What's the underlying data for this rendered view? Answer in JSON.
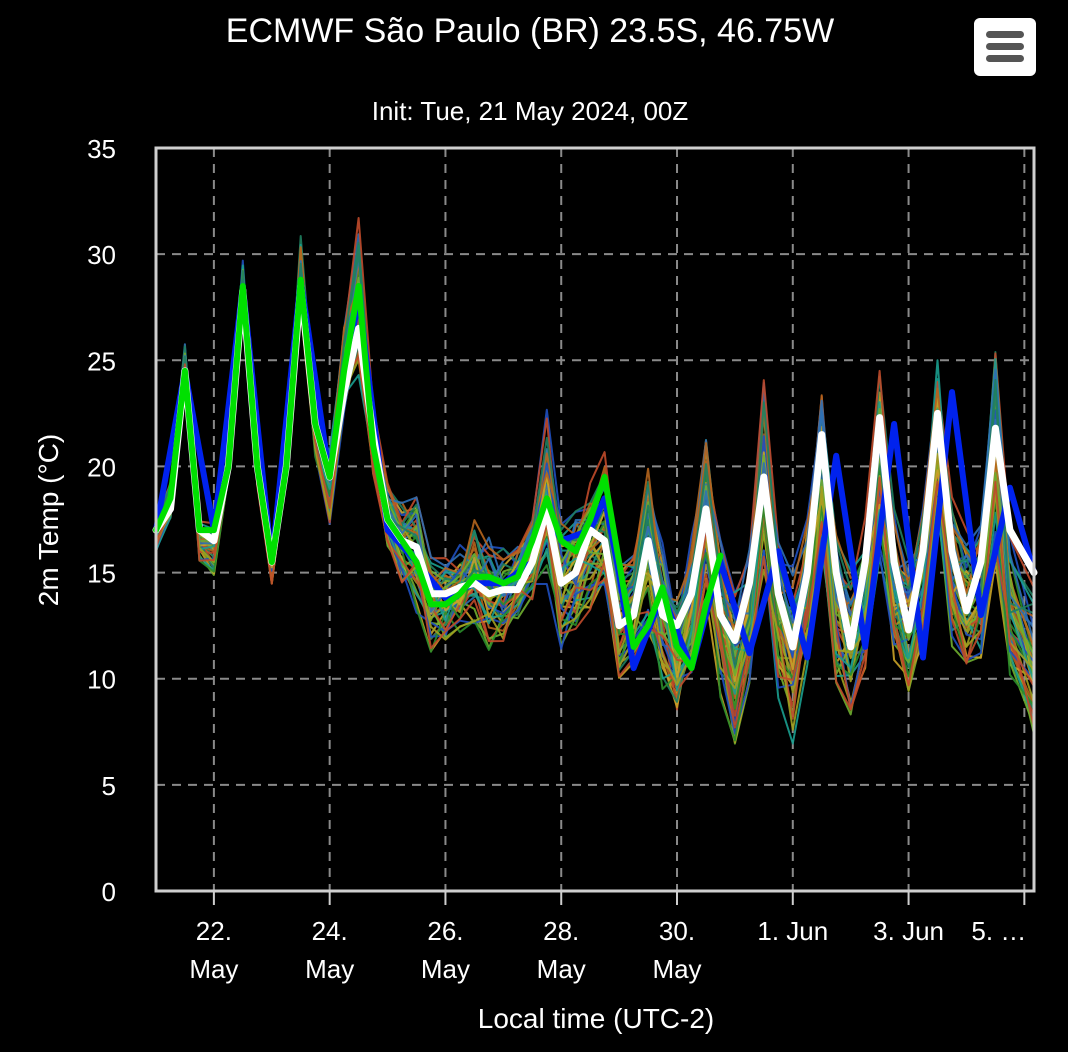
{
  "chart_data": {
    "type": "line",
    "title": "ECMWF São Paulo (BR) 23.5S, 46.75W",
    "subtitle": "Init: Tue, 21 May 2024, 00Z",
    "xlabel": "Local time (UTC-2)",
    "ylabel": "2m Temp (°C)",
    "ylim": [
      0,
      35
    ],
    "yticks": [
      0,
      5,
      10,
      15,
      20,
      25,
      30,
      35
    ],
    "xlim": [
      "2024-05-21T00:00",
      "2024-06-05T04:00"
    ],
    "xticks": [
      {
        "at": "2024-05-22",
        "line1": "22.",
        "line2": "May"
      },
      {
        "at": "2024-05-24",
        "line1": "24.",
        "line2": "May"
      },
      {
        "at": "2024-05-26",
        "line1": "26.",
        "line2": "May"
      },
      {
        "at": "2024-05-28",
        "line1": "28.",
        "line2": "May"
      },
      {
        "at": "2024-05-30",
        "line1": "30.",
        "line2": "May"
      },
      {
        "at": "2024-06-01",
        "line1": "1. Jun",
        "line2": ""
      },
      {
        "at": "2024-06-03",
        "line1": "3. Jun",
        "line2": ""
      },
      {
        "at": "2024-06-05",
        "line1": "5. …",
        "line2": ""
      }
    ],
    "grid": true,
    "series": [
      {
        "role": "highres",
        "color": "#00e000",
        "width": 6,
        "points": [
          [
            "2024-05-21T00:00",
            17.0
          ],
          [
            "2024-05-21T06:00",
            18.5
          ],
          [
            "2024-05-21T12:00",
            24.5
          ],
          [
            "2024-05-21T18:00",
            17.0
          ],
          [
            "2024-05-22T00:00",
            17.0
          ],
          [
            "2024-05-22T06:00",
            20.0
          ],
          [
            "2024-05-22T12:00",
            28.5
          ],
          [
            "2024-05-22T18:00",
            20.0
          ],
          [
            "2024-05-23T00:00",
            15.5
          ],
          [
            "2024-05-23T06:00",
            20.0
          ],
          [
            "2024-05-23T12:00",
            28.8
          ],
          [
            "2024-05-23T18:00",
            22.0
          ],
          [
            "2024-05-24T00:00",
            19.5
          ],
          [
            "2024-05-24T06:00",
            24.5
          ],
          [
            "2024-05-24T12:00",
            28.5
          ],
          [
            "2024-05-24T18:00",
            21.0
          ],
          [
            "2024-05-25T00:00",
            17.5
          ],
          [
            "2024-05-25T06:00",
            16.5
          ],
          [
            "2024-05-25T12:00",
            15.5
          ],
          [
            "2024-05-25T18:00",
            13.5
          ],
          [
            "2024-05-26T00:00",
            13.5
          ],
          [
            "2024-05-26T06:00",
            14.0
          ],
          [
            "2024-05-26T12:00",
            14.8
          ],
          [
            "2024-05-26T18:00",
            14.8
          ],
          [
            "2024-05-27T00:00",
            14.5
          ],
          [
            "2024-05-27T06:00",
            14.8
          ],
          [
            "2024-05-27T12:00",
            16.5
          ],
          [
            "2024-05-27T18:00",
            18.5
          ],
          [
            "2024-05-28T00:00",
            16.5
          ],
          [
            "2024-05-28T06:00",
            16.0
          ],
          [
            "2024-05-28T12:00",
            17.5
          ],
          [
            "2024-05-28T18:00",
            19.5
          ],
          [
            "2024-05-29T00:00",
            15.5
          ],
          [
            "2024-05-29T06:00",
            11.5
          ],
          [
            "2024-05-29T12:00",
            12.5
          ],
          [
            "2024-05-29T18:00",
            14.3
          ],
          [
            "2024-05-30T00:00",
            11.5
          ],
          [
            "2024-05-30T06:00",
            10.5
          ],
          [
            "2024-05-30T12:00",
            13.5
          ],
          [
            "2024-05-30T18:00",
            15.8
          ]
        ]
      },
      {
        "role": "control",
        "color": "#0022ee",
        "width": 6,
        "points": [
          [
            "2024-05-21T00:00",
            17.0
          ],
          [
            "2024-05-21T12:00",
            24.5
          ],
          [
            "2024-05-22T00:00",
            17.0
          ],
          [
            "2024-05-22T12:00",
            28.5
          ],
          [
            "2024-05-23T00:00",
            15.5
          ],
          [
            "2024-05-23T12:00",
            28.8
          ],
          [
            "2024-05-24T00:00",
            19.5
          ],
          [
            "2024-05-24T12:00",
            28.0
          ],
          [
            "2024-05-25T00:00",
            17.0
          ],
          [
            "2024-05-25T12:00",
            15.5
          ],
          [
            "2024-05-26T00:00",
            13.8
          ],
          [
            "2024-05-26T12:00",
            14.5
          ],
          [
            "2024-05-27T00:00",
            14.5
          ],
          [
            "2024-05-27T12:00",
            15.5
          ],
          [
            "2024-05-27T18:00",
            18.0
          ],
          [
            "2024-05-28T00:00",
            16.5
          ],
          [
            "2024-05-28T12:00",
            17.0
          ],
          [
            "2024-05-28T18:00",
            18.5
          ],
          [
            "2024-05-29T00:00",
            15.0
          ],
          [
            "2024-05-29T06:00",
            10.5
          ],
          [
            "2024-05-29T18:00",
            14.0
          ],
          [
            "2024-05-30T06:00",
            10.5
          ],
          [
            "2024-05-30T18:00",
            15.5
          ],
          [
            "2024-05-31T06:00",
            11.2
          ],
          [
            "2024-05-31T18:00",
            16.0
          ],
          [
            "2024-06-01T06:00",
            11.0
          ],
          [
            "2024-06-01T18:00",
            20.5
          ],
          [
            "2024-06-02T06:00",
            11.5
          ],
          [
            "2024-06-02T18:00",
            22.0
          ],
          [
            "2024-06-03T06:00",
            11.0
          ],
          [
            "2024-06-03T18:00",
            23.5
          ],
          [
            "2024-06-04T06:00",
            13.0
          ],
          [
            "2024-06-04T18:00",
            19.0
          ],
          [
            "2024-06-05T04:00",
            15.0
          ]
        ]
      },
      {
        "role": "mean",
        "color": "#ffffff",
        "width": 7,
        "points": [
          [
            "2024-05-21T00:00",
            17.0
          ],
          [
            "2024-05-21T06:00",
            18.0
          ],
          [
            "2024-05-21T12:00",
            24.5
          ],
          [
            "2024-05-21T18:00",
            17.0
          ],
          [
            "2024-05-22T00:00",
            16.5
          ],
          [
            "2024-05-22T06:00",
            20.0
          ],
          [
            "2024-05-22T12:00",
            28.3
          ],
          [
            "2024-05-22T18:00",
            20.0
          ],
          [
            "2024-05-23T00:00",
            15.5
          ],
          [
            "2024-05-23T06:00",
            20.0
          ],
          [
            "2024-05-23T12:00",
            28.5
          ],
          [
            "2024-05-23T18:00",
            22.0
          ],
          [
            "2024-05-24T00:00",
            19.5
          ],
          [
            "2024-05-24T06:00",
            23.5
          ],
          [
            "2024-05-24T12:00",
            26.5
          ],
          [
            "2024-05-24T18:00",
            21.5
          ],
          [
            "2024-05-25T00:00",
            17.5
          ],
          [
            "2024-05-25T06:00",
            16.5
          ],
          [
            "2024-05-25T12:00",
            16.2
          ],
          [
            "2024-05-25T18:00",
            14.0
          ],
          [
            "2024-05-26T00:00",
            14.0
          ],
          [
            "2024-05-26T06:00",
            14.3
          ],
          [
            "2024-05-26T12:00",
            14.5
          ],
          [
            "2024-05-26T18:00",
            14.0
          ],
          [
            "2024-05-27T00:00",
            14.2
          ],
          [
            "2024-05-27T06:00",
            14.2
          ],
          [
            "2024-05-27T12:00",
            15.5
          ],
          [
            "2024-05-27T18:00",
            18.0
          ],
          [
            "2024-05-28T00:00",
            14.5
          ],
          [
            "2024-05-28T06:00",
            15.0
          ],
          [
            "2024-05-28T12:00",
            17.0
          ],
          [
            "2024-05-28T18:00",
            16.5
          ],
          [
            "2024-05-29T00:00",
            12.5
          ],
          [
            "2024-05-29T06:00",
            13.0
          ],
          [
            "2024-05-29T12:00",
            16.5
          ],
          [
            "2024-05-29T18:00",
            13.0
          ],
          [
            "2024-05-30T00:00",
            12.5
          ],
          [
            "2024-05-30T06:00",
            14.0
          ],
          [
            "2024-05-30T12:00",
            18.0
          ],
          [
            "2024-05-30T18:00",
            13.0
          ],
          [
            "2024-05-31T00:00",
            11.8
          ],
          [
            "2024-05-31T06:00",
            14.5
          ],
          [
            "2024-05-31T12:00",
            19.5
          ],
          [
            "2024-05-31T18:00",
            14.0
          ],
          [
            "2024-06-01T00:00",
            11.5
          ],
          [
            "2024-06-01T06:00",
            15.0
          ],
          [
            "2024-06-01T12:00",
            21.5
          ],
          [
            "2024-06-01T18:00",
            15.0
          ],
          [
            "2024-06-02T00:00",
            11.5
          ],
          [
            "2024-06-02T06:00",
            15.5
          ],
          [
            "2024-06-02T12:00",
            22.3
          ],
          [
            "2024-06-02T18:00",
            15.5
          ],
          [
            "2024-06-03T00:00",
            12.3
          ],
          [
            "2024-06-03T06:00",
            16.0
          ],
          [
            "2024-06-03T12:00",
            22.5
          ],
          [
            "2024-06-03T18:00",
            16.0
          ],
          [
            "2024-06-04T00:00",
            13.2
          ],
          [
            "2024-06-04T06:00",
            15.5
          ],
          [
            "2024-06-04T12:00",
            21.8
          ],
          [
            "2024-06-04T18:00",
            17.0
          ],
          [
            "2024-06-05T04:00",
            15.0
          ]
        ]
      }
    ],
    "ensemble": {
      "members": 50,
      "colors": [
        "#1f4fbf",
        "#2a8c2a",
        "#c9a227",
        "#1a9e8f",
        "#b5651d",
        "#6fae2f",
        "#2f6fb5",
        "#a0a020",
        "#1f7f5f",
        "#c04a2a"
      ],
      "spread": [
        [
          "2024-05-21T00:00",
          15.8,
          17.8
        ],
        [
          "2024-05-21T06:00",
          17.5,
          19.5
        ],
        [
          "2024-05-21T12:00",
          24.0,
          26.0
        ],
        [
          "2024-05-21T18:00",
          15.5,
          17.5
        ],
        [
          "2024-05-22T00:00",
          14.8,
          17.5
        ],
        [
          "2024-05-22T06:00",
          19.5,
          20.5
        ],
        [
          "2024-05-22T12:00",
          27.5,
          29.8
        ],
        [
          "2024-05-22T18:00",
          19.0,
          20.5
        ],
        [
          "2024-05-23T00:00",
          14.3,
          16.5
        ],
        [
          "2024-05-23T06:00",
          19.5,
          20.5
        ],
        [
          "2024-05-23T12:00",
          27.0,
          31.0
        ],
        [
          "2024-05-23T18:00",
          20.0,
          23.0
        ],
        [
          "2024-05-24T00:00",
          17.2,
          21.0
        ],
        [
          "2024-05-24T06:00",
          22.5,
          27.0
        ],
        [
          "2024-05-24T12:00",
          24.0,
          32.0
        ],
        [
          "2024-05-24T18:00",
          19.5,
          23.0
        ],
        [
          "2024-05-25T00:00",
          16.0,
          19.5
        ],
        [
          "2024-05-25T06:00",
          14.0,
          19.0
        ],
        [
          "2024-05-25T12:00",
          13.0,
          19.5
        ],
        [
          "2024-05-25T18:00",
          11.0,
          16.5
        ],
        [
          "2024-05-26T00:00",
          11.5,
          16.0
        ],
        [
          "2024-05-26T06:00",
          11.8,
          16.5
        ],
        [
          "2024-05-26T12:00",
          12.0,
          18.0
        ],
        [
          "2024-05-26T18:00",
          11.2,
          17.0
        ],
        [
          "2024-05-27T00:00",
          11.5,
          16.5
        ],
        [
          "2024-05-27T06:00",
          12.5,
          17.0
        ],
        [
          "2024-05-27T12:00",
          13.5,
          18.0
        ],
        [
          "2024-05-27T18:00",
          14.0,
          23.0
        ],
        [
          "2024-05-28T00:00",
          11.0,
          18.0
        ],
        [
          "2024-05-28T06:00",
          12.0,
          18.5
        ],
        [
          "2024-05-28T12:00",
          13.0,
          20.0
        ],
        [
          "2024-05-28T18:00",
          12.5,
          21.5
        ],
        [
          "2024-05-29T00:00",
          9.5,
          16.0
        ],
        [
          "2024-05-29T06:00",
          10.5,
          17.0
        ],
        [
          "2024-05-29T12:00",
          11.5,
          20.8
        ],
        [
          "2024-05-29T18:00",
          9.0,
          17.0
        ],
        [
          "2024-05-30T00:00",
          7.8,
          15.0
        ],
        [
          "2024-05-30T06:00",
          10.0,
          17.0
        ],
        [
          "2024-05-30T12:00",
          13.5,
          22.8
        ],
        [
          "2024-05-30T18:00",
          9.0,
          17.0
        ],
        [
          "2024-05-31T00:00",
          6.5,
          15.0
        ],
        [
          "2024-05-31T06:00",
          9.5,
          17.0
        ],
        [
          "2024-05-31T12:00",
          14.5,
          25.0
        ],
        [
          "2024-05-31T18:00",
          9.0,
          17.0
        ],
        [
          "2024-06-01T00:00",
          6.8,
          15.5
        ],
        [
          "2024-06-01T06:00",
          10.0,
          18.0
        ],
        [
          "2024-06-01T12:00",
          15.5,
          25.0
        ],
        [
          "2024-06-01T18:00",
          9.0,
          18.0
        ],
        [
          "2024-06-02T00:00",
          7.8,
          16.0
        ],
        [
          "2024-06-02T06:00",
          10.0,
          18.0
        ],
        [
          "2024-06-02T12:00",
          15.0,
          25.5
        ],
        [
          "2024-06-02T18:00",
          10.0,
          18.5
        ],
        [
          "2024-06-03T00:00",
          9.0,
          16.0
        ],
        [
          "2024-06-03T06:00",
          11.0,
          19.0
        ],
        [
          "2024-06-03T12:00",
          17.0,
          26.3
        ],
        [
          "2024-06-03T18:00",
          11.0,
          19.0
        ],
        [
          "2024-06-04T00:00",
          10.0,
          17.5
        ],
        [
          "2024-06-04T06:00",
          10.5,
          18.0
        ],
        [
          "2024-06-04T12:00",
          15.0,
          26.0
        ],
        [
          "2024-06-04T18:00",
          9.5,
          17.0
        ],
        [
          "2024-06-05T04:00",
          6.8,
          15.0
        ]
      ]
    }
  },
  "menu": {
    "icon": "hamburger-menu-icon",
    "color": "#555555",
    "background": "#ffffff"
  }
}
